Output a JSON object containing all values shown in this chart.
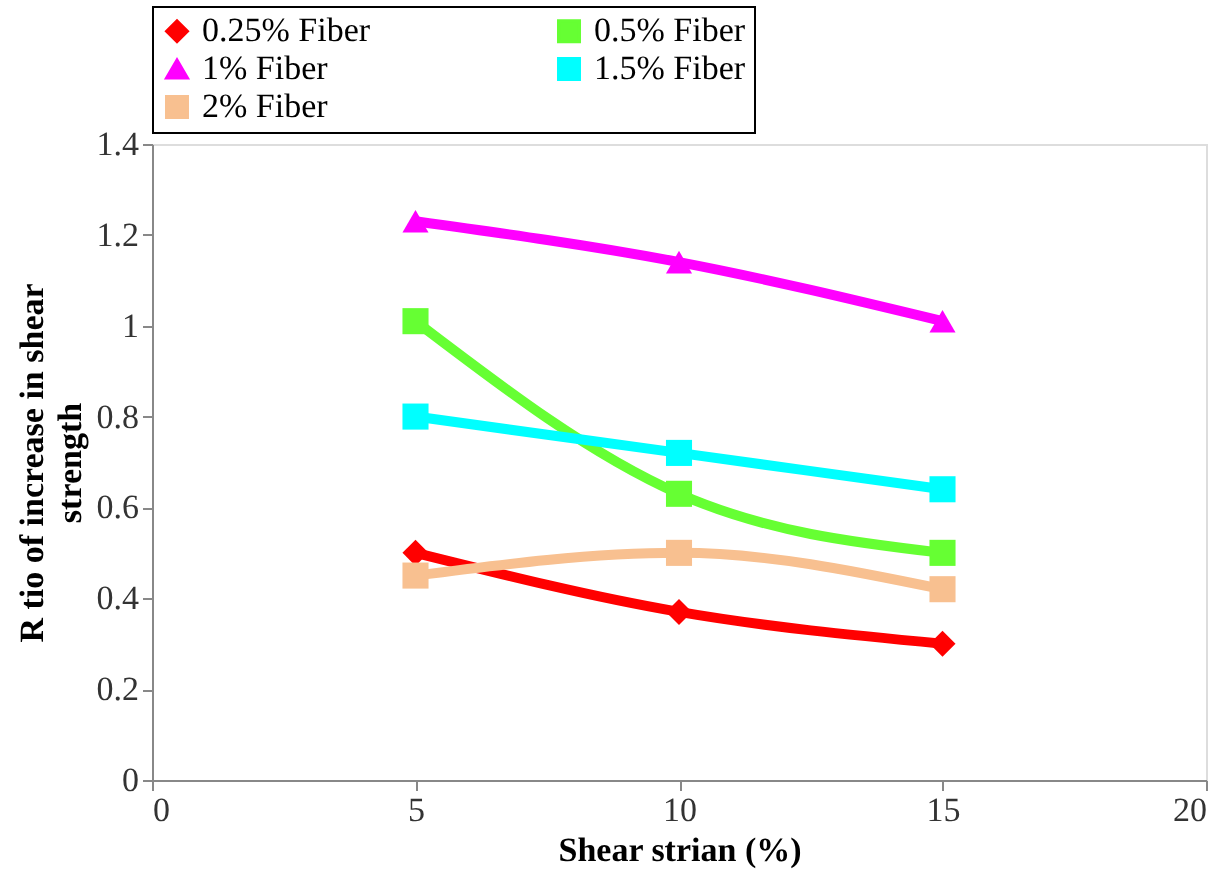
{
  "chart_data": {
    "type": "line",
    "xlabel": "Shear strian (%)",
    "ylabel": "R tio of increase in shear strength",
    "x": [
      5,
      10,
      15
    ],
    "series": [
      {
        "name": "0.25% Fiber",
        "color": "#ff0000",
        "marker": "diamond",
        "values": [
          0.5,
          0.37,
          0.3
        ]
      },
      {
        "name": "0.5% Fiber",
        "color": "#66ff33",
        "marker": "square",
        "values": [
          1.01,
          0.63,
          0.5
        ]
      },
      {
        "name": "1% Fiber",
        "color": "#ff00ff",
        "marker": "triangle",
        "values": [
          1.23,
          1.14,
          1.01
        ]
      },
      {
        "name": "1.5% Fiber",
        "color": "#00ffff",
        "marker": "square",
        "values": [
          0.8,
          0.72,
          0.64
        ]
      },
      {
        "name": "2% Fiber",
        "color": "#f8c090",
        "marker": "square",
        "values": [
          0.45,
          0.5,
          0.42
        ]
      }
    ],
    "xlim": [
      0,
      20
    ],
    "xticks": [
      0,
      5,
      10,
      15,
      20
    ],
    "ylim": [
      0,
      1.4
    ],
    "yticks": [
      0,
      0.2,
      0.4,
      0.6,
      0.8,
      1,
      1.2,
      1.4
    ],
    "grid": false,
    "legend": "top"
  }
}
